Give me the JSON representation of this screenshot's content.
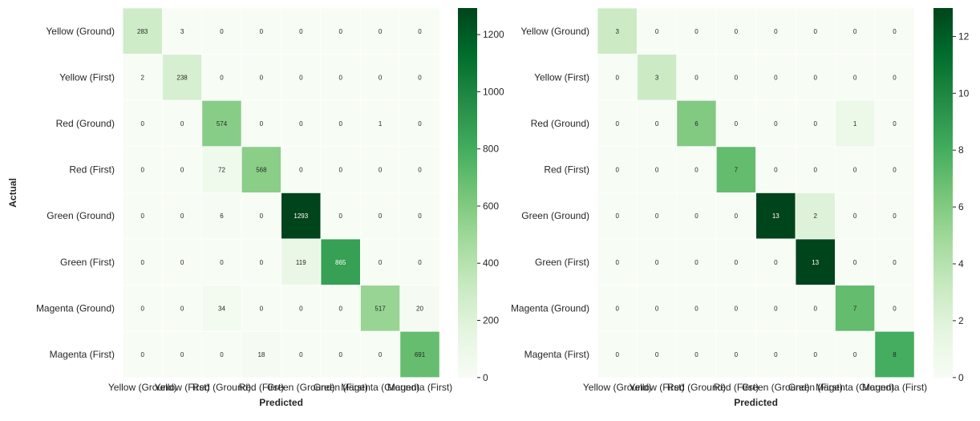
{
  "chart_data": [
    {
      "type": "heatmap",
      "xlabel": "Predicted",
      "ylabel": "Actual",
      "row_labels": [
        "Yellow (Ground)",
        "Yellow (First)",
        "Red (Ground)",
        "Red (First)",
        "Green (Ground)",
        "Green (First)",
        "Magenta (Ground)",
        "Magenta (First)"
      ],
      "col_labels": [
        "Yellow (Ground)",
        "Yellow (First)",
        "Red (Ground)",
        "Red (First)",
        "Green (Ground)",
        "Green (First)",
        "Magenta (Ground)",
        "Magenta (First)"
      ],
      "matrix": [
        [
          283,
          3,
          0,
          0,
          0,
          0,
          0,
          0
        ],
        [
          2,
          238,
          0,
          0,
          0,
          0,
          0,
          0
        ],
        [
          0,
          0,
          574,
          0,
          0,
          0,
          1,
          0
        ],
        [
          0,
          0,
          72,
          568,
          0,
          0,
          0,
          0
        ],
        [
          0,
          0,
          6,
          0,
          1293,
          0,
          0,
          0
        ],
        [
          0,
          0,
          0,
          0,
          119,
          865,
          0,
          0
        ],
        [
          0,
          0,
          34,
          0,
          0,
          0,
          517,
          20
        ],
        [
          0,
          0,
          0,
          18,
          0,
          0,
          0,
          691
        ]
      ],
      "colorbar": {
        "min": 0,
        "max": 1293,
        "ticks": [
          0,
          200,
          400,
          600,
          800,
          1000,
          1200
        ]
      },
      "colormap": "Greens"
    },
    {
      "type": "heatmap",
      "xlabel": "Predicted",
      "ylabel": "",
      "row_labels": [
        "Yellow (Ground)",
        "Yellow (First)",
        "Red (Ground)",
        "Red (First)",
        "Green (Ground)",
        "Green (First)",
        "Magenta (Ground)",
        "Magenta (First)"
      ],
      "col_labels": [
        "Yellow (Ground)",
        "Yellow (First)",
        "Red (Ground)",
        "Red (First)",
        "Green (Ground)",
        "Green (First)",
        "Magenta (Ground)",
        "Magenta (First)"
      ],
      "matrix": [
        [
          3,
          0,
          0,
          0,
          0,
          0,
          0,
          0
        ],
        [
          0,
          3,
          0,
          0,
          0,
          0,
          0,
          0
        ],
        [
          0,
          0,
          6,
          0,
          0,
          0,
          1,
          0
        ],
        [
          0,
          0,
          0,
          7,
          0,
          0,
          0,
          0
        ],
        [
          0,
          0,
          0,
          0,
          13,
          2,
          0,
          0
        ],
        [
          0,
          0,
          0,
          0,
          0,
          13,
          0,
          0
        ],
        [
          0,
          0,
          0,
          0,
          0,
          0,
          7,
          0
        ],
        [
          0,
          0,
          0,
          0,
          0,
          0,
          0,
          8
        ]
      ],
      "colorbar": {
        "min": 0,
        "max": 13,
        "ticks": [
          0,
          2,
          4,
          6,
          8,
          10,
          12
        ]
      },
      "colormap": "Greens"
    }
  ]
}
